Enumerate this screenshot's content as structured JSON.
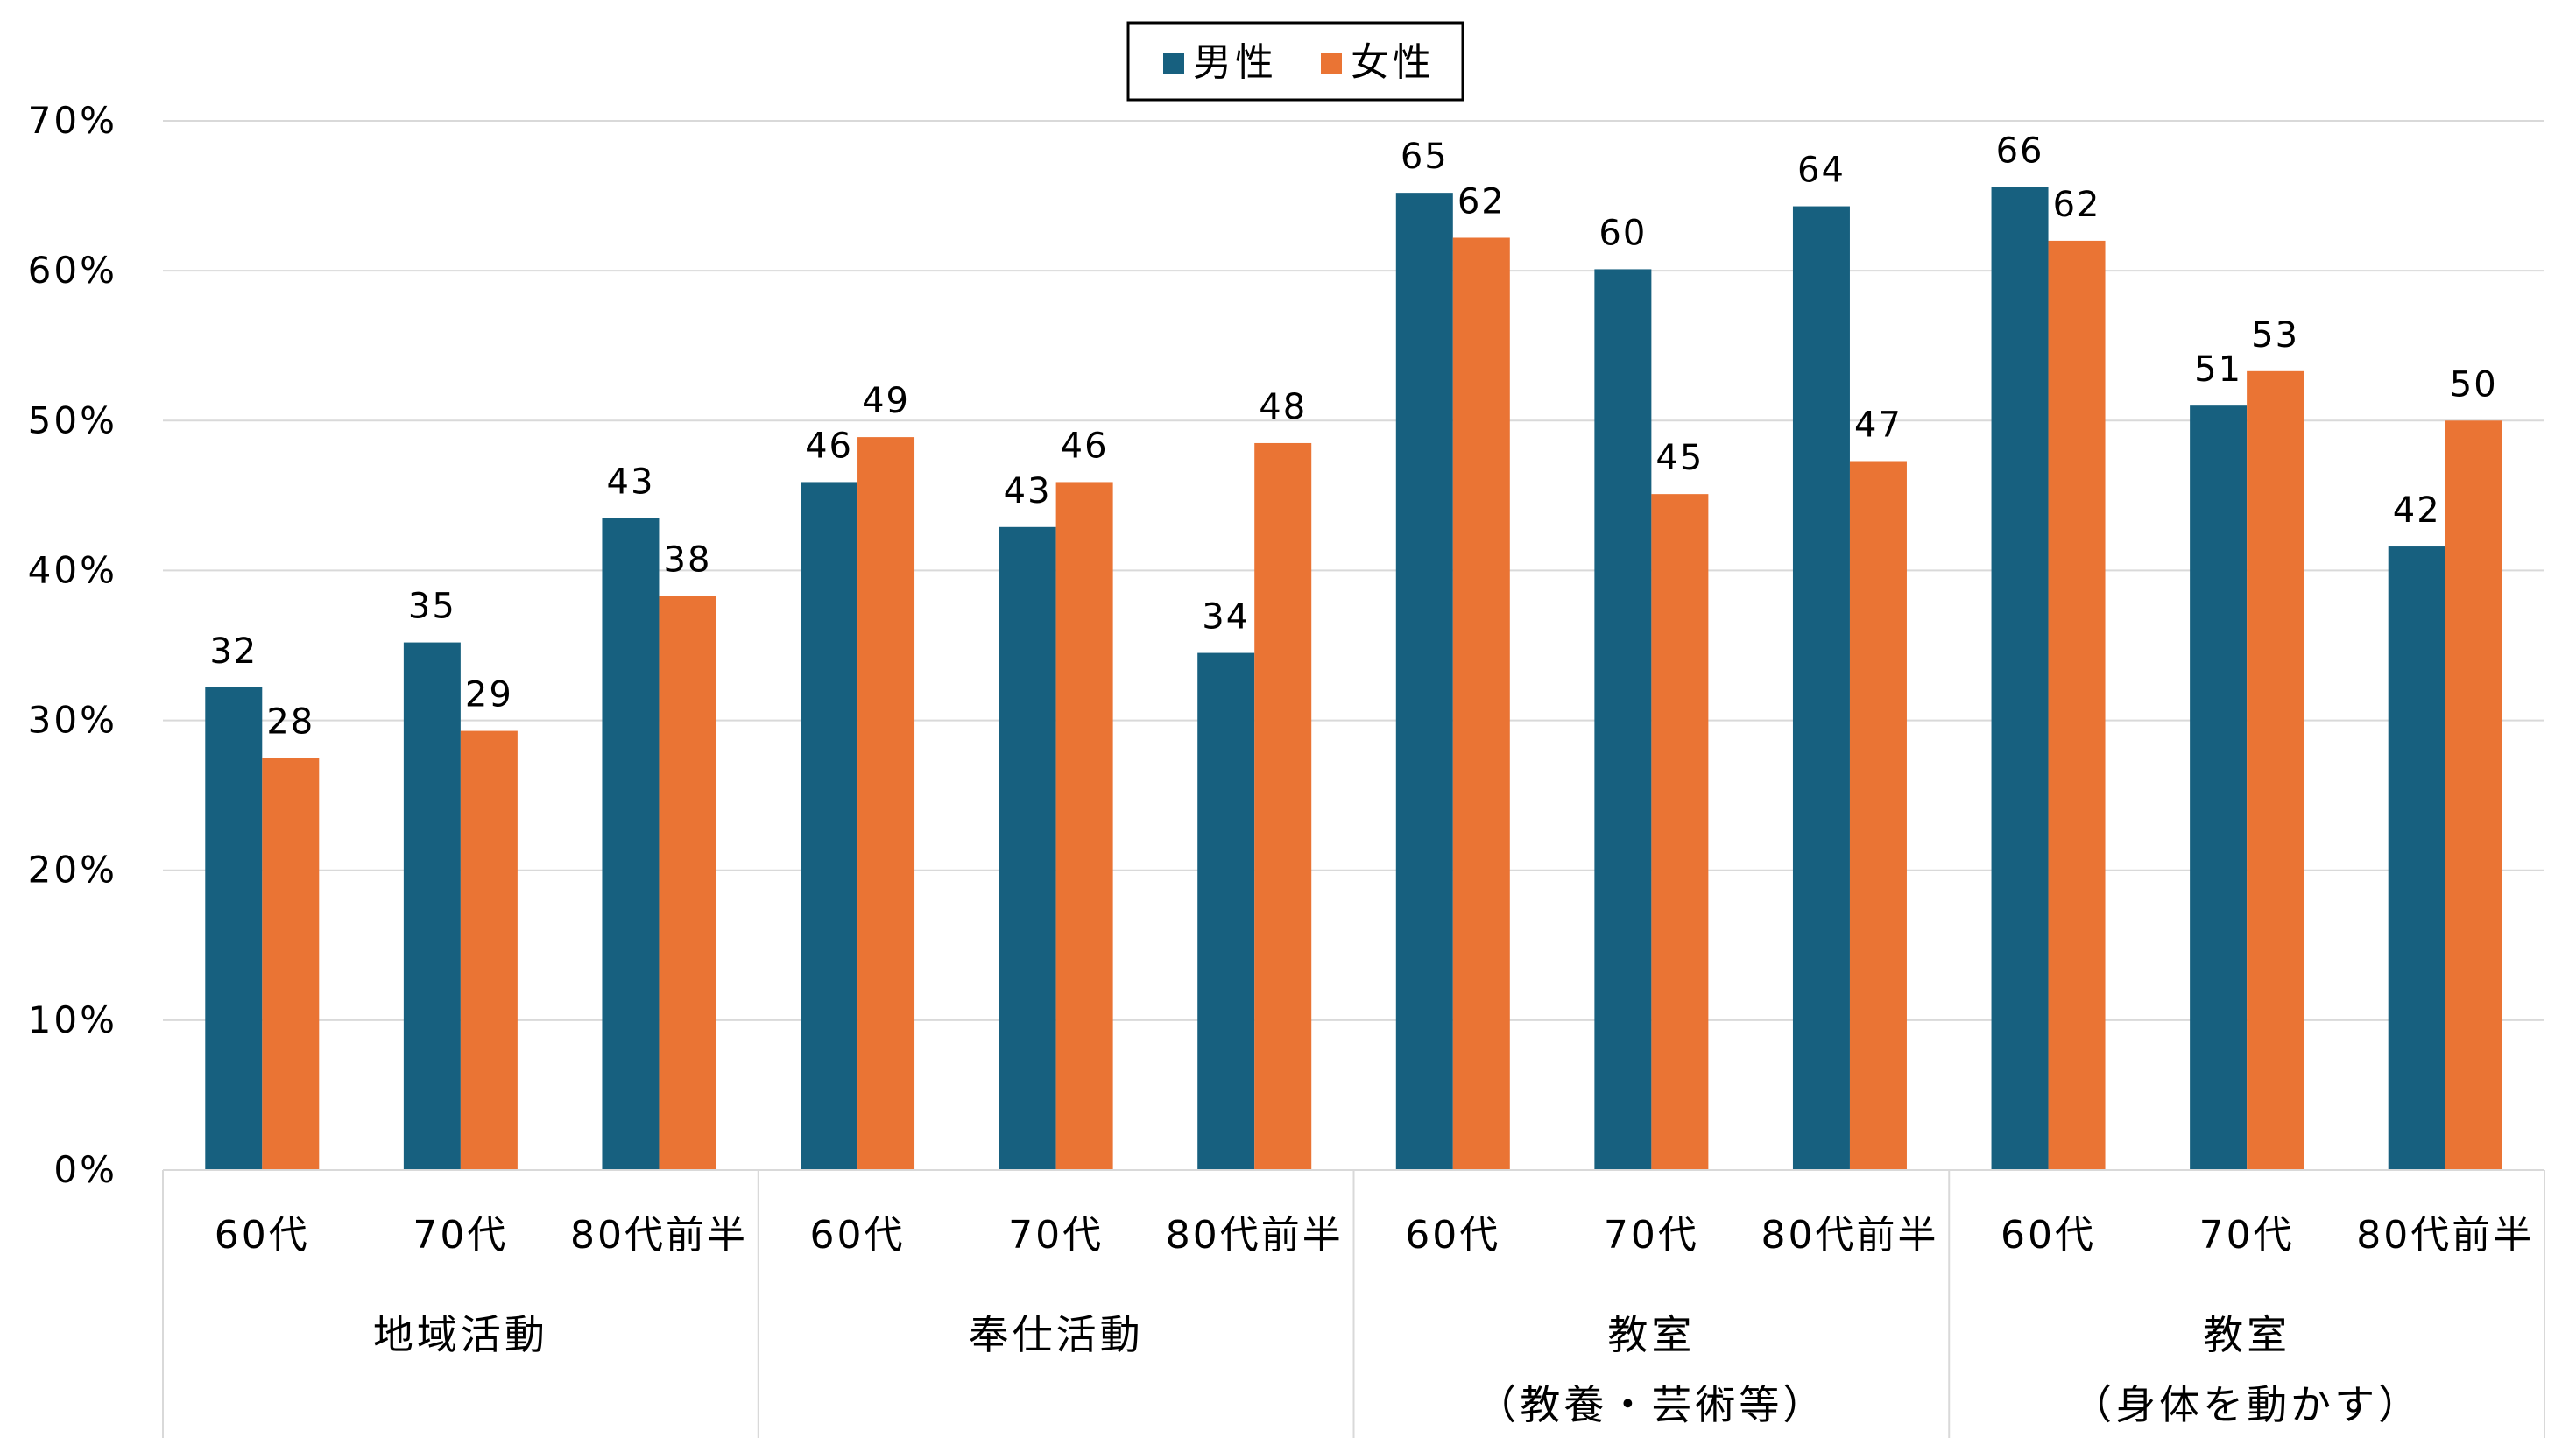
{
  "chart_data": {
    "type": "bar",
    "title": "",
    "xlabel": "",
    "ylabel": "",
    "ylim": [
      0,
      70
    ],
    "yticks": [
      "0%",
      "10%",
      "20%",
      "30%",
      "40%",
      "50%",
      "60%",
      "70%"
    ],
    "grid": true,
    "legend_position": "top-center",
    "groups": [
      {
        "name": "地域活動",
        "name_line2": ""
      },
      {
        "name": "奉仕活動",
        "name_line2": ""
      },
      {
        "name": "教室",
        "name_line2": "（教養・芸術等）"
      },
      {
        "name": "教室",
        "name_line2": "（身体を動かす）"
      }
    ],
    "categories": [
      "60代",
      "70代",
      "80代前半",
      "60代",
      "70代",
      "80代前半",
      "60代",
      "70代",
      "80代前半",
      "60代",
      "70代",
      "80代前半"
    ],
    "series": [
      {
        "name": "男性",
        "color": "#17607F",
        "values": [
          32.2,
          35.2,
          43.5,
          45.9,
          42.9,
          34.5,
          65.2,
          60.1,
          64.3,
          65.6,
          51.0,
          41.6
        ],
        "labels": [
          "32",
          "35",
          "43",
          "46",
          "43",
          "34",
          "65",
          "60",
          "64",
          "66",
          "51",
          "42"
        ]
      },
      {
        "name": "女性",
        "color": "#EA7434",
        "values": [
          27.5,
          29.3,
          38.3,
          48.9,
          45.9,
          48.5,
          62.2,
          45.1,
          47.3,
          62.0,
          53.3,
          50.0
        ],
        "labels": [
          "28",
          "29",
          "38",
          "49",
          "46",
          "48",
          "62",
          "45",
          "47",
          "62",
          "53",
          "50"
        ]
      }
    ]
  }
}
